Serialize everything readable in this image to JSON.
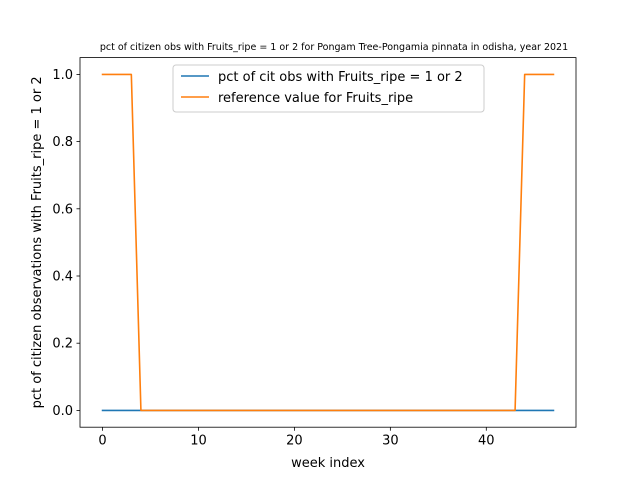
{
  "chart_data": {
    "type": "line",
    "title": "pct of citizen obs with Fruits_ripe = 1 or 2 for Pongam Tree-Pongamia pinnata in odisha, year 2021",
    "xlabel": "week index",
    "ylabel": "pct of citizen observations with Fruits_ripe = 1 or 2",
    "xlim": [
      -2.35,
      49.35
    ],
    "ylim": [
      -0.05,
      1.05
    ],
    "xticks": [
      0,
      10,
      20,
      30,
      40
    ],
    "xtick_labels": [
      "0",
      "10",
      "20",
      "30",
      "40"
    ],
    "yticks": [
      0.0,
      0.2,
      0.4,
      0.6,
      0.8,
      1.0
    ],
    "ytick_labels": [
      "0.0",
      "0.2",
      "0.4",
      "0.6",
      "0.8",
      "1.0"
    ],
    "grid": false,
    "legend_position": "upper-center",
    "series": [
      {
        "name": "pct of cit obs with Fruits_ripe = 1 or 2",
        "color": "#1f77b4",
        "x": [
          0,
          47
        ],
        "y": [
          0,
          0
        ]
      },
      {
        "name": "reference value for Fruits_ripe",
        "color": "#ff7f0e",
        "x": [
          0,
          1,
          2,
          3,
          4,
          5,
          6,
          7,
          8,
          9,
          10,
          11,
          12,
          13,
          14,
          15,
          16,
          17,
          18,
          19,
          20,
          21,
          22,
          23,
          24,
          25,
          26,
          27,
          28,
          29,
          30,
          31,
          32,
          33,
          34,
          35,
          36,
          37,
          38,
          39,
          40,
          41,
          42,
          43,
          44,
          45,
          46,
          47
        ],
        "y": [
          1,
          1,
          1,
          1,
          0,
          0,
          0,
          0,
          0,
          0,
          0,
          0,
          0,
          0,
          0,
          0,
          0,
          0,
          0,
          0,
          0,
          0,
          0,
          0,
          0,
          0,
          0,
          0,
          0,
          0,
          0,
          0,
          0,
          0,
          0,
          0,
          0,
          0,
          0,
          0,
          0,
          0,
          0,
          0,
          1,
          1,
          1,
          1
        ]
      }
    ]
  }
}
